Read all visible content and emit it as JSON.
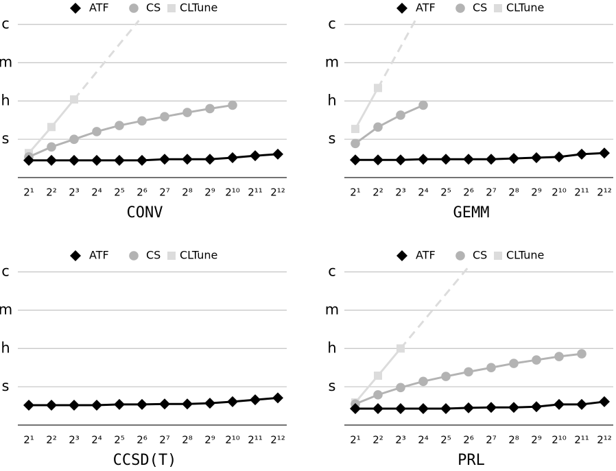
{
  "chart_data": [
    {
      "type": "line",
      "title": "CONV",
      "categories": [
        "2¹",
        "2²",
        "2³",
        "2⁴",
        "2⁵",
        "2⁶",
        "2⁷",
        "2⁸",
        "2⁹",
        "2¹⁰",
        "2¹¹",
        "2¹²"
      ],
      "series": [
        {
          "name": "ATF",
          "color": "#000000",
          "marker": "diamond",
          "values": [
            0.45,
            0.45,
            0.45,
            0.45,
            0.45,
            0.45,
            0.48,
            0.48,
            0.48,
            0.52,
            0.57,
            0.61
          ]
        },
        {
          "name": "CS",
          "color": "#b3b3b3",
          "marker": "circle",
          "values": [
            0.54,
            0.8,
            1.0,
            1.2,
            1.36,
            1.48,
            1.59,
            1.7,
            1.8,
            1.89,
            null,
            null
          ]
        },
        {
          "name": "CLTune",
          "color": "#dcdcdc",
          "marker": "square",
          "extrapolated": true,
          "values": [
            0.64,
            1.32,
            2.04,
            null,
            null,
            null,
            null,
            null,
            null,
            null,
            null,
            null
          ]
        }
      ],
      "ylim": [
        0,
        4.1
      ],
      "yticks": [
        {
          "value": 1,
          "label": "s"
        },
        {
          "value": 2,
          "label": "h"
        },
        {
          "value": 3,
          "label": "m"
        },
        {
          "value": 4,
          "label": "c"
        }
      ],
      "grid": true,
      "legend": "top"
    },
    {
      "type": "line",
      "title": "GEMM",
      "categories": [
        "2¹",
        "2²",
        "2³",
        "2⁴",
        "2⁵",
        "2⁶",
        "2⁷",
        "2⁸",
        "2⁹",
        "2¹⁰",
        "2¹¹",
        "2¹²"
      ],
      "series": [
        {
          "name": "ATF",
          "color": "#000000",
          "marker": "diamond",
          "values": [
            0.46,
            0.46,
            0.46,
            0.48,
            0.48,
            0.48,
            0.48,
            0.5,
            0.52,
            0.54,
            0.61,
            0.64
          ]
        },
        {
          "name": "CS",
          "color": "#b3b3b3",
          "marker": "circle",
          "values": [
            0.89,
            1.32,
            1.63,
            1.89,
            null,
            null,
            null,
            null,
            null,
            null,
            null,
            null
          ]
        },
        {
          "name": "CLTune",
          "color": "#dcdcdc",
          "marker": "square",
          "extrapolated": true,
          "values": [
            1.27,
            2.34,
            null,
            null,
            null,
            null,
            null,
            null,
            null,
            null,
            null,
            null
          ]
        }
      ],
      "ylim": [
        0,
        4.1
      ],
      "yticks": [
        {
          "value": 1,
          "label": "s"
        },
        {
          "value": 2,
          "label": "h"
        },
        {
          "value": 3,
          "label": "m"
        },
        {
          "value": 4,
          "label": "c"
        }
      ],
      "grid": true,
      "legend": "top"
    },
    {
      "type": "line",
      "title": "CCSD(T)",
      "categories": [
        "2¹",
        "2²",
        "2³",
        "2⁴",
        "2⁵",
        "2⁶",
        "2⁷",
        "2⁸",
        "2⁹",
        "2¹⁰",
        "2¹¹",
        "2¹²"
      ],
      "series": [
        {
          "name": "ATF",
          "color": "#000000",
          "marker": "diamond",
          "values": [
            0.52,
            0.52,
            0.52,
            0.52,
            0.54,
            0.54,
            0.55,
            0.55,
            0.57,
            0.61,
            0.66,
            0.71
          ]
        },
        {
          "name": "CS",
          "color": "#b3b3b3",
          "marker": "circle",
          "values": [
            null,
            null,
            null,
            null,
            null,
            null,
            null,
            null,
            null,
            null,
            null,
            null
          ]
        },
        {
          "name": "CLTune",
          "color": "#dcdcdc",
          "marker": "square",
          "values": [
            null,
            null,
            null,
            null,
            null,
            null,
            null,
            null,
            null,
            null,
            null,
            null
          ]
        }
      ],
      "ylim": [
        0,
        4.1
      ],
      "yticks": [
        {
          "value": 1,
          "label": "s"
        },
        {
          "value": 2,
          "label": "h"
        },
        {
          "value": 3,
          "label": "m"
        },
        {
          "value": 4,
          "label": "c"
        }
      ],
      "grid": true,
      "legend": "top"
    },
    {
      "type": "line",
      "title": "PRL",
      "categories": [
        "2¹",
        "2²",
        "2³",
        "2⁴",
        "2⁵",
        "2⁶",
        "2⁷",
        "2⁸",
        "2⁹",
        "2¹⁰",
        "2¹¹",
        "2¹²"
      ],
      "series": [
        {
          "name": "ATF",
          "color": "#000000",
          "marker": "diamond",
          "values": [
            0.43,
            0.43,
            0.43,
            0.43,
            0.43,
            0.45,
            0.46,
            0.46,
            0.48,
            0.54,
            0.54,
            0.61
          ]
        },
        {
          "name": "CS",
          "color": "#b3b3b3",
          "marker": "circle",
          "values": [
            0.55,
            0.79,
            0.98,
            1.14,
            1.27,
            1.39,
            1.5,
            1.61,
            1.7,
            1.79,
            1.86,
            null
          ]
        },
        {
          "name": "CLTune",
          "color": "#dcdcdc",
          "marker": "square",
          "extrapolated": true,
          "values": [
            0.59,
            1.29,
            2.0,
            null,
            null,
            null,
            null,
            null,
            null,
            null,
            null,
            null
          ]
        }
      ],
      "ylim": [
        0,
        4.1
      ],
      "yticks": [
        {
          "value": 1,
          "label": "s"
        },
        {
          "value": 2,
          "label": "h"
        },
        {
          "value": 3,
          "label": "m"
        },
        {
          "value": 4,
          "label": "c"
        }
      ],
      "grid": true,
      "legend": "top"
    }
  ]
}
